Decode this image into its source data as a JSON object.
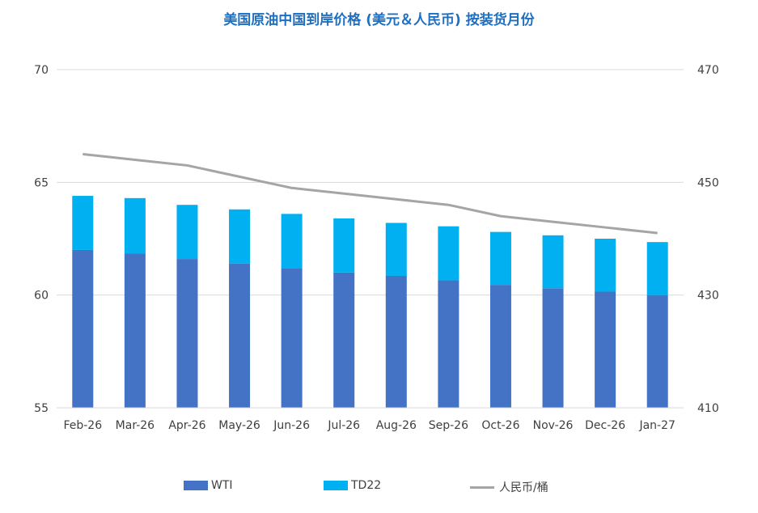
{
  "chart_data": {
    "type": "bar",
    "title": "美国原油中国到岸价格 (美元＆人民币) 按装货月份",
    "categories": [
      "Feb-26",
      "Mar-26",
      "Apr-26",
      "May-26",
      "Jun-26",
      "Jul-26",
      "Aug-26",
      "Sep-26",
      "Oct-26",
      "Nov-26",
      "Dec-26",
      "Jan-27"
    ],
    "series": [
      {
        "name": "WTI",
        "type": "bar",
        "axis": "left",
        "stack": "total",
        "color": "#4472c4",
        "values": [
          62.0,
          61.85,
          61.6,
          61.4,
          61.2,
          61.0,
          60.85,
          60.65,
          60.45,
          60.3,
          60.15,
          60.0
        ]
      },
      {
        "name": "TD22",
        "type": "bar",
        "axis": "left",
        "stack": "total",
        "color": "#00b0f0",
        "values": [
          2.4,
          2.45,
          2.4,
          2.4,
          2.4,
          2.4,
          2.35,
          2.4,
          2.35,
          2.35,
          2.35,
          2.35
        ]
      },
      {
        "name": "人民币/桶",
        "type": "line",
        "axis": "right",
        "color": "#a5a5a5",
        "values": [
          455,
          454,
          453,
          451,
          449,
          448,
          447,
          446,
          444,
          443,
          442,
          441
        ]
      }
    ],
    "y_left": {
      "min": 55,
      "max": 70,
      "ticks": [
        "55",
        "60",
        "65",
        "70"
      ]
    },
    "y_right": {
      "min": 410,
      "max": 470,
      "ticks": [
        "410",
        "430",
        "450",
        "470"
      ]
    },
    "grid": true,
    "legend": "bottom"
  }
}
